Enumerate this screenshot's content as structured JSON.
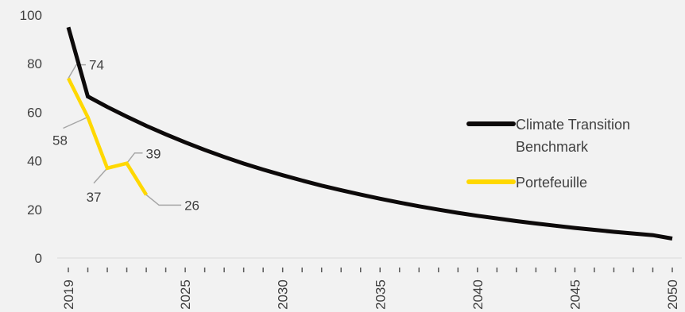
{
  "chart_data": {
    "type": "line",
    "title": "",
    "xlabel": "",
    "ylabel": "",
    "ylim": [
      0,
      100
    ],
    "yticks": [
      0,
      20,
      40,
      60,
      80,
      100
    ],
    "xlim": [
      2019,
      2050
    ],
    "xtick_labels": [
      "2019",
      "2025",
      "2030",
      "2035",
      "2040",
      "2045",
      "2050"
    ],
    "grid": false,
    "legend_position": "right",
    "series": [
      {
        "name": "Climate Transition Benchmark",
        "color": "#0d0a0a",
        "x": [
          2019,
          2020,
          2021,
          2022,
          2023,
          2024,
          2025,
          2026,
          2027,
          2028,
          2029,
          2030,
          2031,
          2032,
          2033,
          2034,
          2035,
          2036,
          2037,
          2038,
          2039,
          2040,
          2041,
          2042,
          2043,
          2044,
          2045,
          2046,
          2047,
          2048,
          2049,
          2050
        ],
        "values": [
          95,
          66.5,
          62.2,
          58.2,
          54.4,
          50.9,
          47.6,
          44.5,
          41.6,
          38.9,
          36.4,
          34.1,
          31.9,
          29.8,
          27.9,
          26.1,
          24.4,
          22.8,
          21.3,
          19.9,
          18.6,
          17.4,
          16.3,
          15.2,
          14.2,
          13.3,
          12.4,
          11.6,
          10.8,
          10.1,
          9.4,
          8.0
        ]
      },
      {
        "name": "Portefeuille",
        "color": "#ffd800",
        "x": [
          2019,
          2020,
          2021,
          2022,
          2023
        ],
        "values": [
          74,
          58,
          37,
          39,
          26
        ]
      }
    ],
    "data_labels": [
      {
        "series": "Portefeuille",
        "x": 2019,
        "text": "74"
      },
      {
        "series": "Portefeuille",
        "x": 2020,
        "text": "58"
      },
      {
        "series": "Portefeuille",
        "x": 2021,
        "text": "37"
      },
      {
        "series": "Portefeuille",
        "x": 2022,
        "text": "39"
      },
      {
        "series": "Portefeuille",
        "x": 2023,
        "text": "26"
      }
    ]
  },
  "legend": {
    "items": [
      {
        "label_line1": "Climate Transition",
        "label_line2": "Benchmark",
        "color": "#0d0a0a"
      },
      {
        "label_line1": "Portefeuille",
        "label_line2": "",
        "color": "#ffd800"
      }
    ]
  }
}
